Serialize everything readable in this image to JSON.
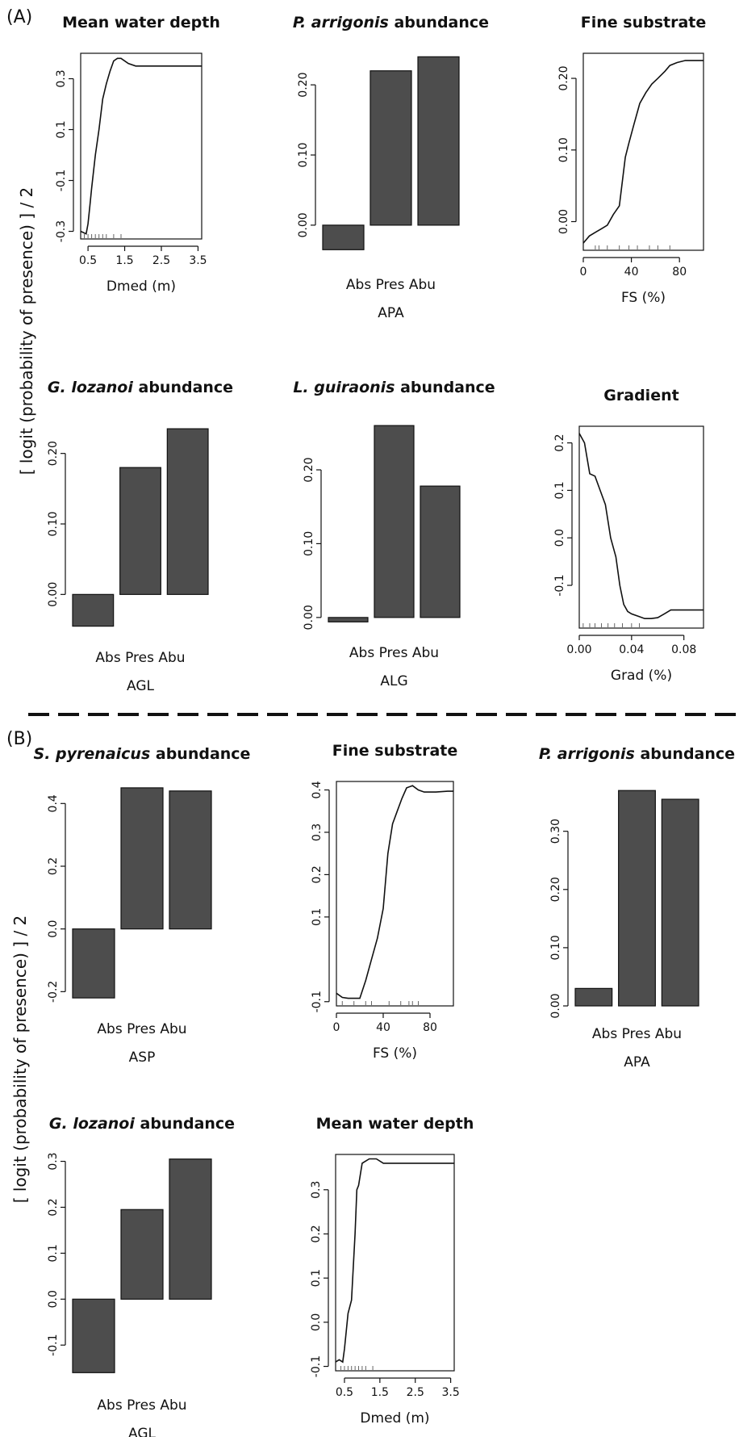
{
  "figure": {
    "panel_labels": [
      "(A)",
      "(B)"
    ],
    "ylabel": "[ logit (probability of presence) ] / 2"
  },
  "chart_data": [
    {
      "panel": "A",
      "type": "line",
      "title": "Mean water depth",
      "xlabel": "Dmed (m)",
      "xlim": [
        0.3,
        3.6
      ],
      "ylim": [
        -0.33,
        0.4
      ],
      "xticks": [
        0.5,
        1.5,
        2.5,
        3.5
      ],
      "xtick_labels": [
        "0.5",
        "1.5",
        "2.5",
        "3.5"
      ],
      "yticks": [
        -0.3,
        -0.1,
        0.1,
        0.3
      ],
      "ytick_labels": [
        "-0.3",
        "-0.1",
        "0.1",
        "0.3"
      ],
      "x": [
        0.3,
        0.45,
        0.5,
        0.55,
        0.6,
        0.7,
        0.8,
        0.9,
        1.0,
        1.1,
        1.2,
        1.3,
        1.4,
        1.6,
        1.8,
        2.0,
        2.5,
        3.0,
        3.6
      ],
      "y": [
        -0.3,
        -0.31,
        -0.27,
        -0.2,
        -0.13,
        0.0,
        0.1,
        0.22,
        0.28,
        0.33,
        0.37,
        0.38,
        0.38,
        0.36,
        0.35,
        0.35,
        0.35,
        0.35,
        0.35
      ],
      "rug": [
        0.4,
        0.5,
        0.6,
        0.7,
        0.8,
        0.9,
        1.0,
        1.2,
        1.4
      ]
    },
    {
      "panel": "A",
      "type": "bar",
      "title_italic": "P. arrigonis",
      "title": "abundance",
      "xlabel": "APA",
      "categories": [
        "Abs",
        "Pres",
        "Abu"
      ],
      "values": [
        -0.035,
        0.22,
        0.24
      ],
      "ylim": [
        -0.045,
        0.245
      ],
      "yticks": [
        0.0,
        0.1,
        0.2
      ],
      "ytick_labels": [
        "0.00",
        "0.10",
        "0.20"
      ]
    },
    {
      "panel": "A",
      "type": "line",
      "title": "Fine substrate",
      "xlabel": "FS (%)",
      "xlim": [
        0,
        100
      ],
      "ylim": [
        -0.04,
        0.235
      ],
      "xticks": [
        0,
        40,
        80
      ],
      "xtick_labels": [
        "0",
        "40",
        "80"
      ],
      "yticks": [
        0.0,
        0.1,
        0.2
      ],
      "ytick_labels": [
        "0.00",
        "0.10",
        "0.20"
      ],
      "x": [
        0,
        5,
        10,
        15,
        20,
        25,
        30,
        35,
        38,
        42,
        47,
        52,
        57,
        62,
        68,
        72,
        78,
        85,
        92,
        100
      ],
      "y": [
        -0.03,
        -0.02,
        -0.015,
        -0.01,
        -0.005,
        0.01,
        0.022,
        0.09,
        0.11,
        0.135,
        0.165,
        0.18,
        0.192,
        0.2,
        0.21,
        0.218,
        0.222,
        0.225,
        0.225,
        0.225
      ],
      "rug": [
        10,
        13,
        20,
        30,
        38,
        45,
        55,
        62,
        72
      ]
    },
    {
      "panel": "A",
      "type": "bar",
      "title_italic": "G. lozanoi",
      "title": "abundance",
      "xlabel": "AGL",
      "categories": [
        "Abs",
        "Pres",
        "Abu"
      ],
      "values": [
        -0.045,
        0.18,
        0.235
      ],
      "ylim": [
        -0.05,
        0.25
      ],
      "yticks": [
        0.0,
        0.1,
        0.2
      ],
      "ytick_labels": [
        "0.00",
        "0.10",
        "0.20"
      ]
    },
    {
      "panel": "A",
      "type": "bar",
      "title_italic": "L. guiraonis",
      "title": "abundance",
      "xlabel": "ALG",
      "categories": [
        "Abs",
        "Pres",
        "Abu"
      ],
      "values": [
        -0.006,
        0.26,
        0.178
      ],
      "ylim": [
        -0.01,
        0.27
      ],
      "yticks": [
        0.0,
        0.1,
        0.2
      ],
      "ytick_labels": [
        "0.00",
        "0.10",
        "0.20"
      ]
    },
    {
      "panel": "A",
      "type": "line",
      "title": "Gradient",
      "xlabel": "Grad (%)",
      "xlim": [
        0,
        0.095
      ],
      "ylim": [
        -0.19,
        0.235
      ],
      "xticks": [
        0.0,
        0.04,
        0.08
      ],
      "xtick_labels": [
        "0.00",
        "0.04",
        "0.08"
      ],
      "yticks": [
        -0.1,
        0.0,
        0.1,
        0.2
      ],
      "ytick_labels": [
        "-0.1",
        "0.0",
        "0.1",
        "0.2"
      ],
      "x": [
        0.0,
        0.004,
        0.008,
        0.012,
        0.016,
        0.02,
        0.024,
        0.028,
        0.031,
        0.034,
        0.037,
        0.04,
        0.045,
        0.05,
        0.055,
        0.06,
        0.065,
        0.07,
        0.08,
        0.095
      ],
      "y": [
        0.22,
        0.2,
        0.135,
        0.13,
        0.1,
        0.07,
        0.0,
        -0.04,
        -0.1,
        -0.14,
        -0.155,
        -0.16,
        -0.165,
        -0.17,
        -0.17,
        -0.168,
        -0.16,
        -0.152,
        -0.152,
        -0.152
      ],
      "rug": [
        0.003,
        0.008,
        0.012,
        0.017,
        0.022,
        0.027,
        0.033,
        0.04,
        0.046
      ]
    },
    {
      "panel": "B",
      "type": "bar",
      "title_italic": "S. pyrenaicus",
      "title": "abundance",
      "xlabel": "ASP",
      "categories": [
        "Abs",
        "Pres",
        "Abu"
      ],
      "values": [
        -0.22,
        0.45,
        0.44
      ],
      "ylim": [
        -0.23,
        0.46
      ],
      "yticks": [
        -0.2,
        0.0,
        0.2,
        0.4
      ],
      "ytick_labels": [
        "-0.2",
        "0.0",
        "0.2",
        "0.4"
      ]
    },
    {
      "panel": "B",
      "type": "line",
      "title": "Fine substrate",
      "xlabel": "FS (%)",
      "xlim": [
        0,
        100
      ],
      "ylim": [
        -0.11,
        0.42
      ],
      "xticks": [
        0,
        40,
        80
      ],
      "xtick_labels": [
        "0",
        "40",
        "80"
      ],
      "yticks": [
        -0.1,
        0.1,
        0.2,
        0.3,
        0.4
      ],
      "ytick_labels": [
        "-0.1",
        "0.1",
        "0.2",
        "0.3",
        "0.4"
      ],
      "x": [
        0,
        5,
        10,
        15,
        20,
        25,
        30,
        35,
        40,
        44,
        48,
        52,
        56,
        60,
        65,
        70,
        75,
        85,
        95,
        100
      ],
      "y": [
        -0.08,
        -0.09,
        -0.092,
        -0.092,
        -0.092,
        -0.05,
        0.0,
        0.05,
        0.12,
        0.25,
        0.32,
        0.35,
        0.38,
        0.405,
        0.41,
        0.4,
        0.395,
        0.395,
        0.397,
        0.397
      ],
      "rug": [
        5,
        15,
        25,
        30,
        45,
        55,
        62,
        65,
        70
      ]
    },
    {
      "panel": "B",
      "type": "bar",
      "title_italic": "P. arrigonis",
      "title": "abundance",
      "xlabel": "APA",
      "categories": [
        "Abs",
        "Pres",
        "Abu"
      ],
      "values": [
        0.03,
        0.37,
        0.355
      ],
      "ylim": [
        0.0,
        0.38
      ],
      "yticks": [
        0.0,
        0.1,
        0.2,
        0.3
      ],
      "ytick_labels": [
        "0.00",
        "0.10",
        "0.20",
        "0.30"
      ]
    },
    {
      "panel": "B",
      "type": "bar",
      "title_italic": "G. lozanoi",
      "title": "abundance",
      "xlabel": "AGL",
      "categories": [
        "Abs",
        "Pres",
        "Abu"
      ],
      "values": [
        -0.16,
        0.195,
        0.305
      ],
      "ylim": [
        -0.17,
        0.315
      ],
      "yticks": [
        -0.1,
        0.0,
        0.1,
        0.2,
        0.3
      ],
      "ytick_labels": [
        "-0.1",
        "0.0",
        "0.1",
        "0.2",
        "0.3"
      ]
    },
    {
      "panel": "B",
      "type": "line",
      "title": "Mean water depth",
      "xlabel": "Dmed (m)",
      "xlim": [
        0.25,
        3.6
      ],
      "ylim": [
        -0.11,
        0.38
      ],
      "xticks": [
        0.5,
        1.5,
        2.5,
        3.5
      ],
      "xtick_labels": [
        "0.5",
        "1.5",
        "2.5",
        "3.5"
      ],
      "yticks": [
        -0.1,
        0.0,
        0.1,
        0.2,
        0.3
      ],
      "ytick_labels": [
        "-0.1",
        "0.0",
        "0.1",
        "0.2",
        "0.3"
      ],
      "x": [
        0.25,
        0.35,
        0.45,
        0.5,
        0.55,
        0.6,
        0.7,
        0.8,
        0.85,
        0.9,
        1.0,
        1.1,
        1.2,
        1.3,
        1.4,
        1.6,
        2.0,
        2.5,
        3.0,
        3.6
      ],
      "y": [
        -0.09,
        -0.085,
        -0.09,
        -0.06,
        -0.02,
        0.02,
        0.05,
        0.2,
        0.3,
        0.31,
        0.36,
        0.365,
        0.37,
        0.37,
        0.37,
        0.36,
        0.36,
        0.36,
        0.36,
        0.36
      ],
      "rug": [
        0.4,
        0.5,
        0.6,
        0.7,
        0.8,
        0.9,
        1.0,
        1.1,
        1.3
      ]
    }
  ]
}
